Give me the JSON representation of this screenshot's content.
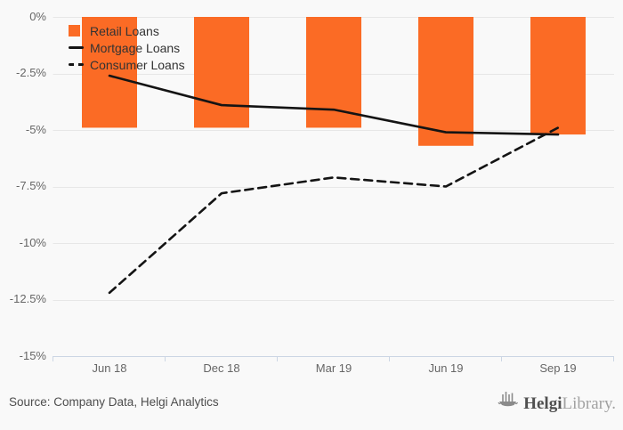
{
  "chart_data": {
    "type": "bar",
    "subtype": "bar-and-line combo",
    "title": "",
    "xlabel": "",
    "ylabel": "",
    "categories": [
      "Jun 18",
      "Dec 18",
      "Mar 19",
      "Jun 19",
      "Sep 19"
    ],
    "series": [
      {
        "name": "Retail Loans",
        "type": "bar",
        "style": "solid",
        "color": "#fb6b25",
        "values": [
          -4.9,
          -4.9,
          -4.9,
          -5.7,
          -5.2
        ]
      },
      {
        "name": "Mortgage Loans",
        "type": "line",
        "style": "solid",
        "color": "#141414",
        "values": [
          -2.6,
          -3.9,
          -4.1,
          -5.1,
          -5.2
        ]
      },
      {
        "name": "Consumer Loans",
        "type": "line",
        "style": "dashed",
        "color": "#141414",
        "values": [
          -12.2,
          -7.8,
          -7.1,
          -7.5,
          -4.9
        ]
      }
    ],
    "ylim": [
      -15,
      0
    ],
    "y_ticks": [
      0,
      -2.5,
      -5,
      -7.5,
      -10,
      -12.5,
      -15
    ],
    "y_tick_labels": [
      "0%",
      "-2.5%",
      "-5%",
      "-7.5%",
      "-10%",
      "-12.5%",
      "-15%"
    ],
    "grid": true,
    "legend_position": "top-left",
    "colors": {
      "background": "#f9f9f9",
      "gridline": "#e7e7e7",
      "axis_line": "#ccd6e4",
      "tick_label": "#666666",
      "legend_text": "#333333"
    }
  },
  "footer": {
    "source": "Source: Company Data, Helgi Analytics",
    "logo_primary": "Helgi",
    "logo_secondary": "Library."
  }
}
